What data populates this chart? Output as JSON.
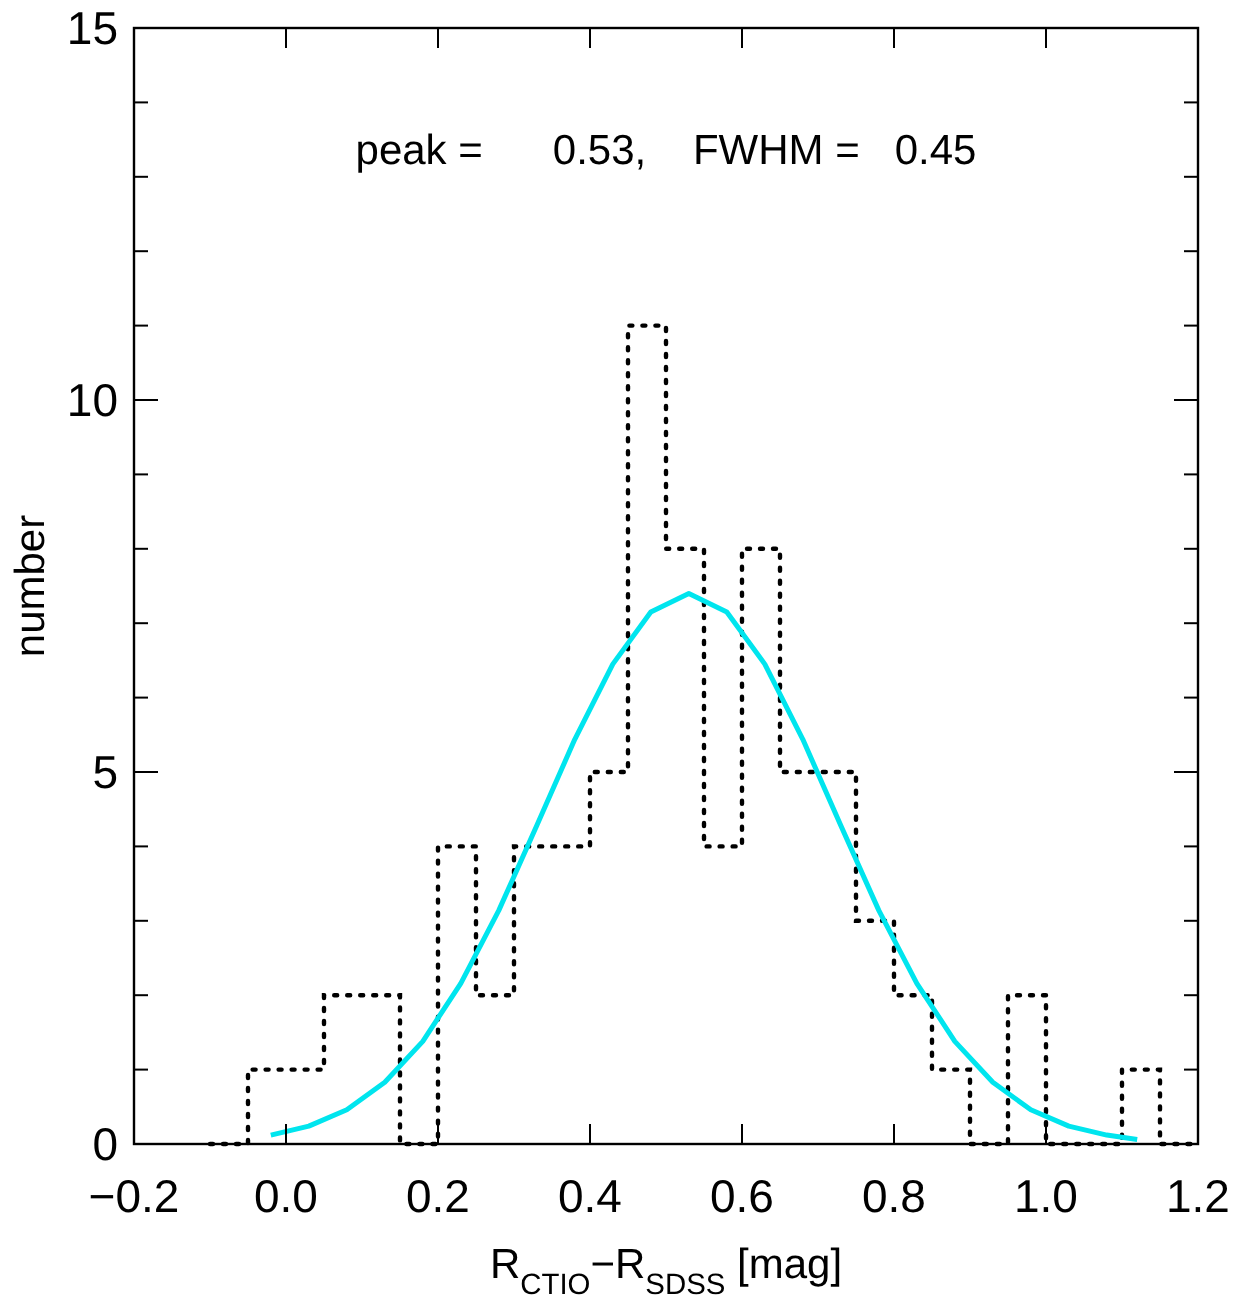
{
  "chart_data": {
    "type": "histogram",
    "xlabel": "R$_{CTIO}$−R$_{SDSS}$ [mag]",
    "ylabel": "number",
    "annotations": [
      "peak =      0.53,    FWHM =   0.45"
    ],
    "xlim": [
      -0.2,
      1.2
    ],
    "ylim": [
      0,
      15
    ],
    "xticks": [
      {
        "value": -0.2,
        "label": "−0.2"
      },
      {
        "value": 0,
        "label": "0.0"
      },
      {
        "value": 0.2,
        "label": "0.2"
      },
      {
        "value": 0.4,
        "label": "0.4"
      },
      {
        "value": 0.6,
        "label": "0.6"
      },
      {
        "value": 0.8,
        "label": "0.8"
      },
      {
        "value": 1,
        "label": "1.0"
      },
      {
        "value": 1.2,
        "label": "1.2"
      }
    ],
    "yticks": [
      0,
      {
        "value": 1,
        "label": null
      },
      {
        "value": 2,
        "label": null
      },
      {
        "value": 3,
        "label": null
      },
      {
        "value": 4,
        "label": null
      },
      5,
      {
        "value": 6,
        "label": null
      },
      {
        "value": 7,
        "label": null
      },
      {
        "value": 8,
        "label": null
      },
      {
        "value": 9,
        "label": null
      },
      10,
      {
        "value": 11,
        "label": null
      },
      {
        "value": 12,
        "label": null
      },
      {
        "value": 13,
        "label": null
      },
      {
        "value": 14,
        "label": null
      },
      15
    ],
    "grid": false,
    "series": [
      {
        "color": "#000000",
        "line_style": "dotted",
        "bins": [
          -0.1,
          -0.05,
          0,
          0.05,
          0.1,
          0.15,
          0.2,
          0.25,
          0.3,
          0.35,
          0.4,
          0.45,
          0.5,
          0.55,
          0.6,
          0.65,
          0.7,
          0.75,
          0.8,
          0.85,
          0.9,
          0.95,
          1.0,
          1.05,
          1.1,
          1.15,
          1.2
        ],
        "values": [
          0,
          1,
          1,
          2,
          2,
          0,
          4,
          2,
          4,
          4,
          5,
          11,
          8,
          4,
          8,
          5,
          5,
          3,
          2,
          1,
          0,
          2,
          0,
          0,
          1,
          0
        ]
      },
      {
        "type": "line",
        "color": "#00e5ee",
        "line_style": "solid",
        "x": [
          -0.02,
          0.03,
          0.08,
          0.13,
          0.18,
          0.23,
          0.28,
          0.33,
          0.38,
          0.43,
          0.48,
          0.53,
          0.58,
          0.63,
          0.68,
          0.73,
          0.78,
          0.83,
          0.88,
          0.93,
          0.98,
          1.03,
          1.08,
          1.12
        ],
        "values": [
          0.12,
          0.24,
          0.46,
          0.83,
          1.38,
          2.16,
          3.14,
          4.28,
          5.44,
          6.45,
          7.15,
          7.4,
          7.15,
          6.45,
          5.44,
          4.28,
          3.14,
          2.16,
          1.38,
          0.83,
          0.46,
          0.24,
          0.12,
          0.06
        ]
      }
    ]
  }
}
